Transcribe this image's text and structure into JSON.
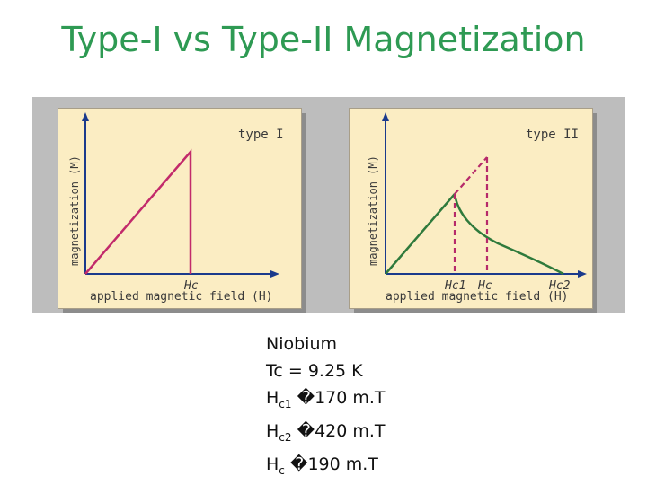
{
  "title": "Type-I vs Type-II Magnetization",
  "panels": [
    {
      "label": "type I",
      "ylabel": "magnetization (M)",
      "xlabel": "applied magnetic field (H)",
      "xticks": [
        "Hc"
      ]
    },
    {
      "label": "type II",
      "ylabel": "magnetization (M)",
      "xlabel": "applied magnetic field (H)",
      "xticks": [
        "Hc1",
        "Hc",
        "Hc2"
      ]
    }
  ],
  "colors": {
    "title": "#2e9a53",
    "type1_curve": "#c22a6b",
    "type2_curve": "#2f7a3c",
    "dashed": "#b62a6a",
    "axis": "#1a3a8c",
    "panel_bg": "#fbedc3"
  },
  "info": {
    "material": "Niobium",
    "tc": "Tc = 9.25 K",
    "hc1_prefix": "H",
    "hc1_sub": "c1",
    "hc1_glyph": "�",
    "hc1_value": "170 m.T",
    "hc2_prefix": "H",
    "hc2_sub": "c2",
    "hc2_glyph": "�",
    "hc2_value": "420 m.T",
    "hc_prefix": "H",
    "hc_sub": "c",
    "hc_glyph": "�",
    "hc_value": "190 m.T"
  }
}
